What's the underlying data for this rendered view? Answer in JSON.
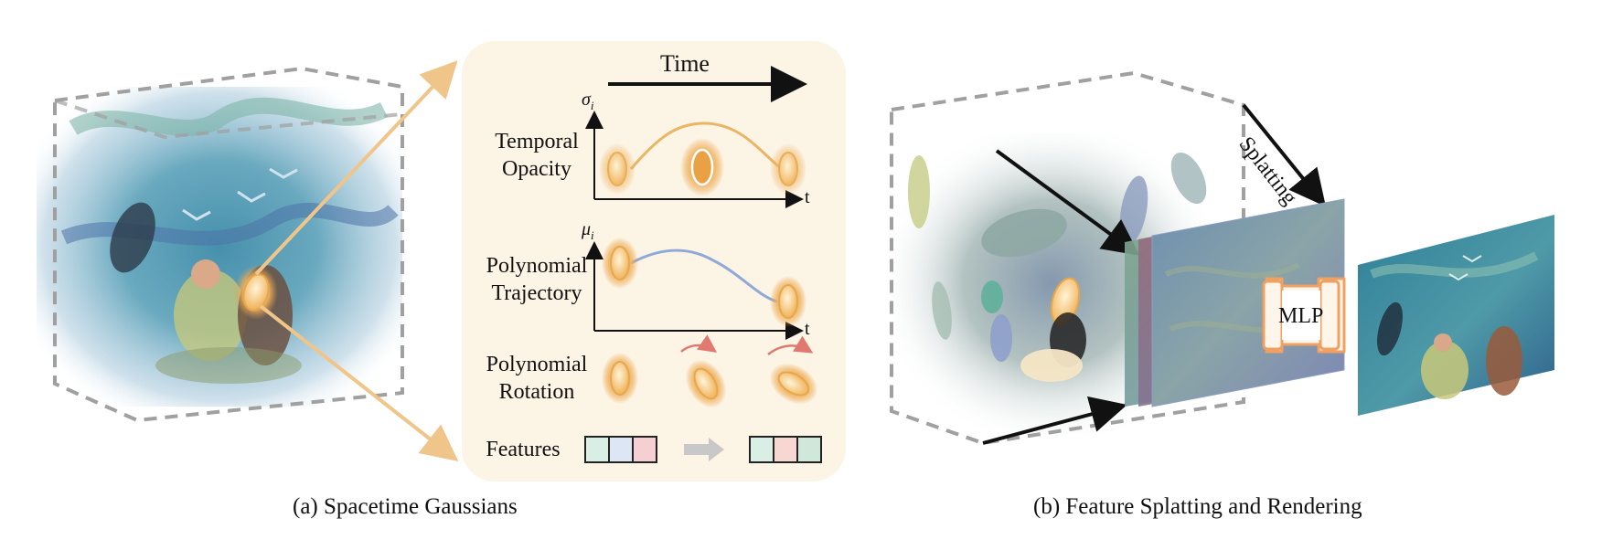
{
  "panel_a": {
    "caption": "(a) Spacetime Gaussians",
    "time_label": "Time",
    "rows": {
      "temporal_opacity": "Temporal\nOpacity",
      "polynomial_trajectory": "Polynomial\nTrajectory",
      "polynomial_rotation": "Polynomial\nRotation",
      "features": "Features"
    },
    "axis": {
      "opacity_symbol": "σ",
      "opacity_sub": "i",
      "trajectory_symbol": "μ",
      "trajectory_sub": "i",
      "t_label": "t"
    },
    "feature_colors_before": [
      "#d9efe6",
      "#dde6f5",
      "#f6cfd2"
    ],
    "feature_colors_after": [
      "#d9efe6",
      "#f8d6d2",
      "#cfe8da"
    ],
    "accent_color": "#e8a84a",
    "panel_bg": "#fcf4e4"
  },
  "panel_b": {
    "caption": "(b) Feature Splatting and Rendering",
    "splatting_label": "Splatting",
    "mlp_label": "MLP",
    "mlp_border_color": "#f0a060"
  }
}
